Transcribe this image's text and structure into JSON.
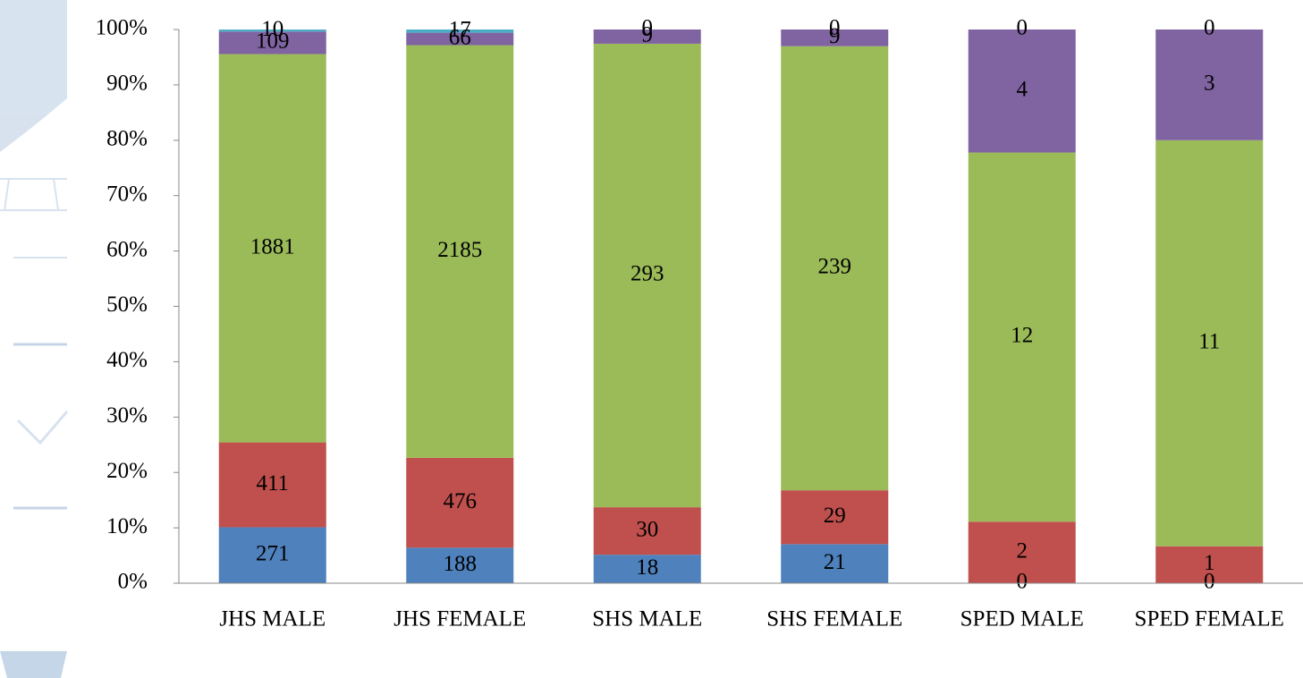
{
  "chart_data": {
    "type": "stacked_percent_bar",
    "categories": [
      "JHS MALE",
      "JHS FEMALE",
      "SHS MALE",
      "SHS FEMALE",
      "SPED MALE",
      "SPED FEMALE"
    ],
    "series": [
      {
        "color": "#4f81bd",
        "values": [
          271,
          188,
          18,
          21,
          0,
          0
        ]
      },
      {
        "color": "#c0504d",
        "values": [
          411,
          476,
          30,
          29,
          2,
          1
        ]
      },
      {
        "color": "#9bbb59",
        "values": [
          1881,
          2185,
          293,
          239,
          12,
          11
        ]
      },
      {
        "color": "#8064a2",
        "values": [
          109,
          66,
          9,
          9,
          4,
          3
        ]
      },
      {
        "color": "#4bacc6",
        "values": [
          10,
          17,
          0,
          0,
          0,
          0
        ]
      }
    ],
    "ylim": [
      0,
      100
    ],
    "yticks": [
      {
        "value": 0,
        "label": "0%"
      },
      {
        "value": 10,
        "label": "10%"
      },
      {
        "value": 20,
        "label": "20%"
      },
      {
        "value": 30,
        "label": "30%"
      },
      {
        "value": 40,
        "label": "40%"
      },
      {
        "value": 50,
        "label": "50%"
      },
      {
        "value": 60,
        "label": "60%"
      },
      {
        "value": 70,
        "label": "70%"
      },
      {
        "value": 80,
        "label": "80%"
      },
      {
        "value": 90,
        "label": "90%"
      },
      {
        "value": 100,
        "label": "100%"
      }
    ]
  }
}
